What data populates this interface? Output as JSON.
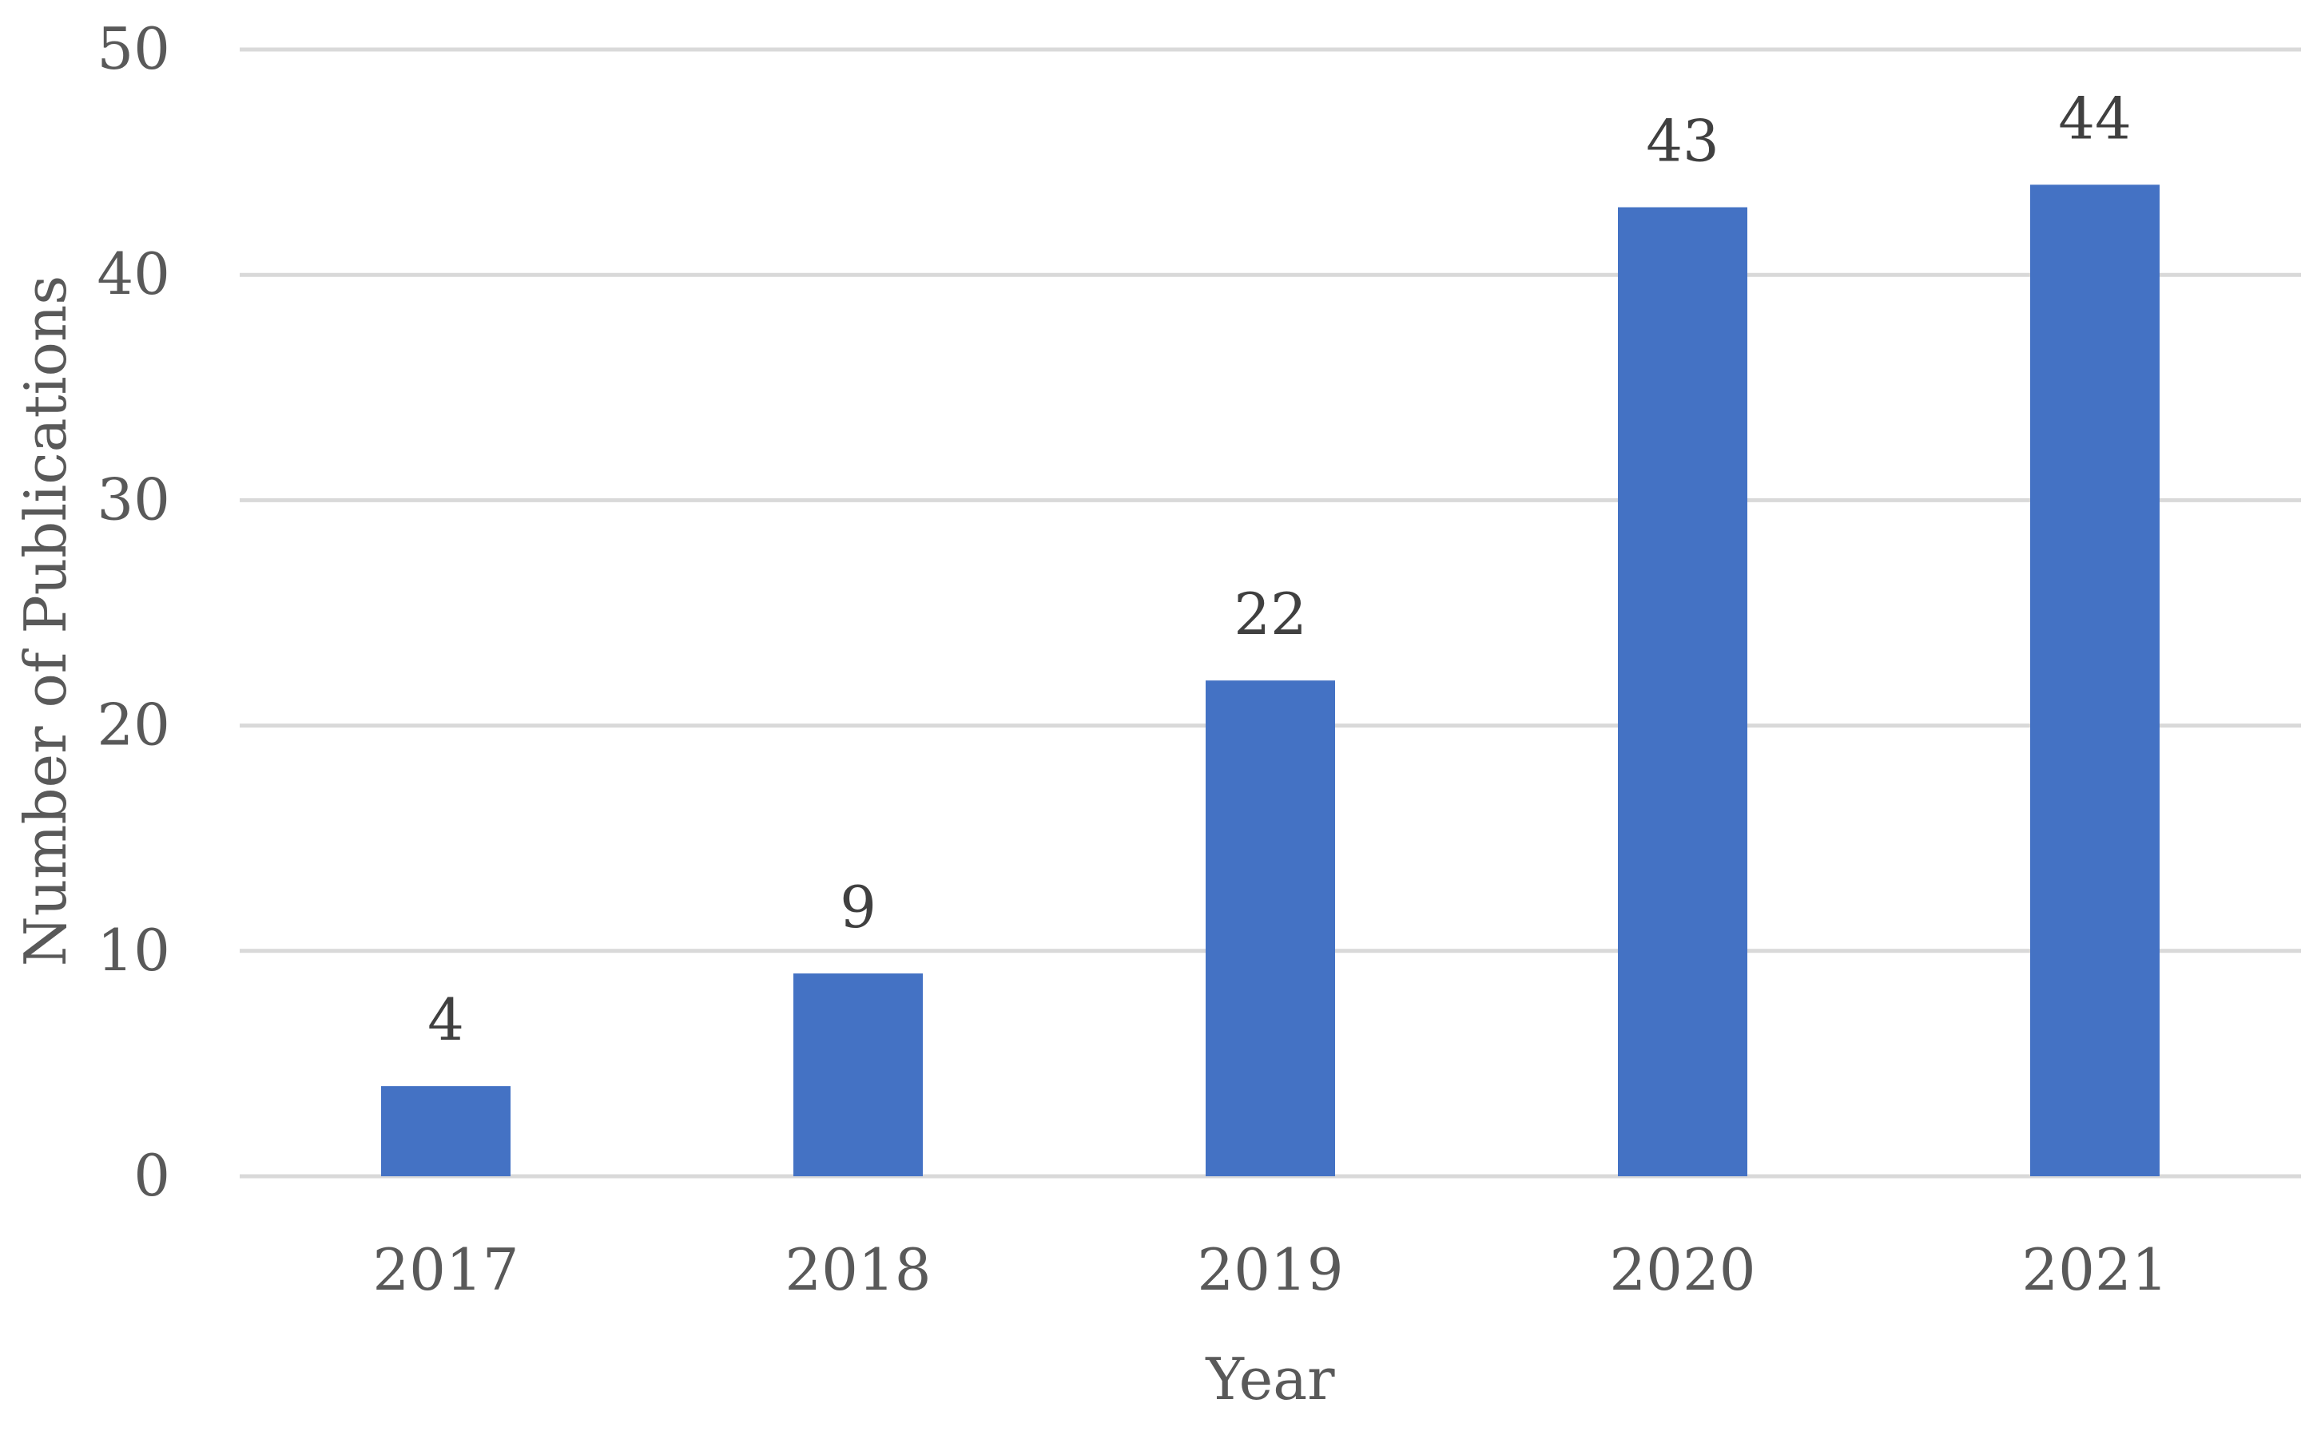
{
  "chart_data": {
    "type": "bar",
    "title": "",
    "categories": [
      "2017",
      "2018",
      "2019",
      "2020",
      "2021"
    ],
    "values": [
      4,
      9,
      22,
      43,
      44
    ],
    "xlabel": "Year",
    "ylabel": "Number of Publications",
    "ylim": [
      0,
      50
    ],
    "yticks": [
      "0",
      "10",
      "20",
      "30",
      "40",
      "50"
    ],
    "data_labels": [
      "4",
      "9",
      "22",
      "43",
      "44"
    ],
    "grid": true,
    "legend": "none",
    "bar_color": "#4472C4"
  }
}
